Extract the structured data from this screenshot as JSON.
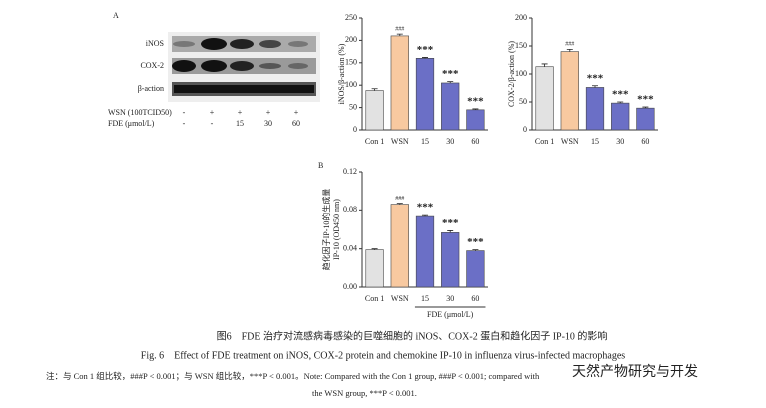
{
  "blot": {
    "label": "A",
    "rows": [
      "iNOS",
      "COX-2",
      "β-action"
    ],
    "treatments": [
      {
        "name": "WSN (100TCID50)",
        "levels": [
          "-",
          "+",
          "+",
          "+",
          "+"
        ]
      },
      {
        "name": "FDE (μmol/L)",
        "levels": [
          "-",
          "-",
          "15",
          "30",
          "60"
        ]
      }
    ]
  },
  "chart_data": [
    {
      "type": "bar",
      "ylabel": [
        "iNOS/β-action (%)"
      ],
      "categories": [
        "Con 1",
        "WSN",
        "15",
        "30",
        "60"
      ],
      "values": [
        88,
        210,
        160,
        105,
        45
      ],
      "errors": [
        4,
        4,
        2,
        3,
        2
      ],
      "annotations": [
        null,
        "###",
        "***",
        "***",
        "***"
      ],
      "colors": [
        "#e2e2e2",
        "#f8c9a0",
        "#6b6fc6",
        "#6b6fc6",
        "#6b6fc6"
      ],
      "ylim": [
        0,
        250
      ],
      "yticks": [
        0,
        50,
        100,
        150,
        200,
        250
      ]
    },
    {
      "type": "bar",
      "ylabel": [
        "COX-2/β-action (%)"
      ],
      "categories": [
        "Con 1",
        "WSN",
        "15",
        "30",
        "60"
      ],
      "values": [
        113,
        140,
        76,
        48,
        39
      ],
      "errors": [
        5,
        4,
        3,
        2,
        2
      ],
      "annotations": [
        null,
        "###",
        "***",
        "***",
        "***"
      ],
      "colors": [
        "#e2e2e2",
        "#f8c9a0",
        "#6b6fc6",
        "#6b6fc6",
        "#6b6fc6"
      ],
      "ylim": [
        0,
        200
      ],
      "yticks": [
        0,
        50,
        100,
        150,
        200
      ]
    },
    {
      "type": "bar",
      "panel_label": "B",
      "ylabel": [
        "趋化因子IP-10的生成量",
        "IP-10 (OD450 nm)"
      ],
      "categories": [
        "Con 1",
        "WSN",
        "15",
        "30",
        "60"
      ],
      "xlabel": "FDE (μmol/L)",
      "values": [
        0.039,
        0.086,
        0.074,
        0.057,
        0.038
      ],
      "errors": [
        0.001,
        0.001,
        0.001,
        0.002,
        0.001
      ],
      "annotations": [
        null,
        "###",
        "***",
        "***",
        "***"
      ],
      "colors": [
        "#e2e2e2",
        "#f8c9a0",
        "#6b6fc6",
        "#6b6fc6",
        "#6b6fc6"
      ],
      "ylim": [
        0,
        0.12
      ],
      "yticks": [
        {
          "value": 0,
          "label": "0.00"
        },
        0.04,
        0.08,
        0.12
      ]
    }
  ],
  "caption": {
    "cn": "图6　FDE 治疗对流感病毒感染的巨噬细胞的 iNOS、COX-2 蛋白和趋化因子 IP-10 的影响",
    "en": "Fig. 6　Effect of FDE treatment on iNOS, COX-2 protein and chemokine IP-10 in influenza virus-infected macrophages",
    "note1": "注：与 Con 1 组比较，###P < 0.001；与 WSN 组比较，***P < 0.001。Note: Compared with the Con 1 group, ###P < 0.001; compared with",
    "note2": "the WSN group, ***P < 0.001.",
    "watermark": "天然产物研究与开发"
  }
}
